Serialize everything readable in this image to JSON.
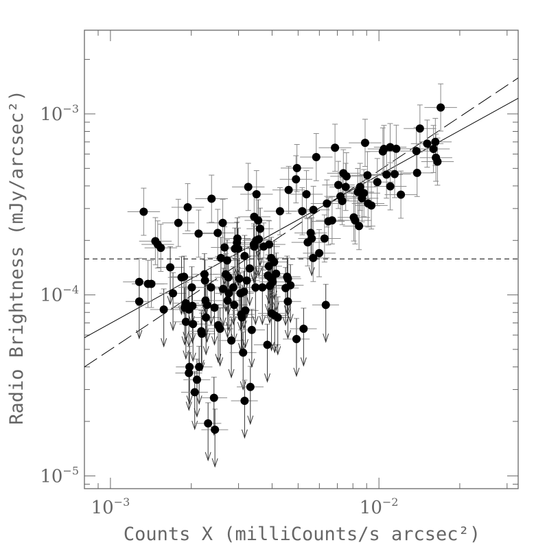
{
  "chart_data": {
    "type": "scatter",
    "title": "",
    "xlabel": "Counts X (milliCounts/s arcsec²)",
    "ylabel": "Radio Brightness (mJy/arcsec²)",
    "xscale": "log",
    "yscale": "log",
    "xlim": [
      0.0008,
      0.033
    ],
    "ylim": [
      8.5e-06,
      0.0029
    ],
    "xticks": [
      {
        "value": 0.001,
        "base": "10",
        "exp": "−3"
      },
      {
        "value": 0.01,
        "base": "10",
        "exp": "−2"
      }
    ],
    "yticks": [
      {
        "value": 1e-05,
        "base": "10",
        "exp": "−5"
      },
      {
        "value": 0.0001,
        "base": "10",
        "exp": "−4"
      },
      {
        "value": 0.001,
        "base": "10",
        "exp": "−3"
      }
    ],
    "grid": false,
    "colors": {
      "points": "#000000",
      "errorbars": "#888888",
      "axes": "#666666",
      "lines": "#000000"
    },
    "reference_lines": [
      {
        "style": "solid",
        "from": [
          0.0008,
          5.8e-05
        ],
        "to": [
          0.033,
          0.00122
        ]
      },
      {
        "style": "long-dash",
        "from": [
          0.0008,
          4e-05
        ],
        "to": [
          0.033,
          0.00158
        ]
      },
      {
        "style": "short-dash-horizontal",
        "y": 0.000158
      }
    ],
    "detections": [
      [
        0.00128,
        0.000118
      ],
      [
        0.00133,
        0.000288
      ],
      [
        0.00138,
        0.000115
      ],
      [
        0.00142,
        0.000115
      ],
      [
        0.00147,
        0.000198
      ],
      [
        0.0015,
        0.00019
      ],
      [
        0.00154,
        0.000182
      ],
      [
        0.00179,
        0.00025
      ],
      [
        0.00194,
        0.000305
      ],
      [
        0.00213,
        0.000218
      ],
      [
        0.00238,
        0.00034
      ],
      [
        0.00251,
        0.00022
      ],
      [
        0.00262,
        0.00025
      ],
      [
        0.00326,
        0.000395
      ],
      [
        0.00343,
        0.00027
      ],
      [
        0.0035,
        0.00036
      ],
      [
        0.00372,
        0.000185
      ],
      [
        0.0039,
        0.00019
      ],
      [
        0.00428,
        0.00029
      ],
      [
        0.00461,
        0.00038
      ],
      [
        0.00491,
        0.000435
      ],
      [
        0.00495,
        0.000502
      ],
      [
        0.00518,
        0.00029
      ],
      [
        0.00537,
        0.00036
      ],
      [
        0.0057,
        0.000295
      ],
      [
        0.00584,
        0.000577
      ],
      [
        0.00543,
        0.000195
      ],
      [
        0.00557,
        0.00022
      ],
      [
        0.00569,
        0.00016
      ],
      [
        0.00599,
        0.00017
      ],
      [
        0.00627,
        0.000205
      ],
      [
        0.0064,
        0.00032
      ],
      [
        0.00648,
        0.000255
      ],
      [
        0.00669,
        0.000258
      ],
      [
        0.00686,
        0.00065
      ],
      [
        0.00706,
        0.000405
      ],
      [
        0.00719,
        0.00035
      ],
      [
        0.0073,
        0.00033
      ],
      [
        0.00737,
        0.00047
      ],
      [
        0.00757,
        0.000452
      ],
      [
        0.00752,
        0.000395
      ],
      [
        0.00806,
        0.000268
      ],
      [
        0.00815,
        0.000258
      ],
      [
        0.00834,
        0.00037
      ],
      [
        0.00851,
        0.000395
      ],
      [
        0.00843,
        0.00024
      ],
      [
        0.00865,
        0.000342
      ],
      [
        0.00879,
        0.000365
      ],
      [
        0.00888,
        0.000692
      ],
      [
        0.00906,
        0.000458
      ],
      [
        0.00911,
        0.00032
      ],
      [
        0.00937,
        0.000312
      ],
      [
        0.00986,
        0.00042
      ],
      [
        0.01034,
        0.00062
      ],
      [
        0.01044,
        0.00064
      ],
      [
        0.01067,
        0.000462
      ],
      [
        0.01101,
        0.000655
      ],
      [
        0.01102,
        0.000398
      ],
      [
        0.01144,
        0.000465
      ],
      [
        0.0116,
        0.000642
      ],
      [
        0.01207,
        0.000358
      ],
      [
        0.01379,
        0.000623
      ],
      [
        0.01387,
        0.000472
      ],
      [
        0.01421,
        0.00083
      ],
      [
        0.01512,
        0.000685
      ],
      [
        0.01596,
        0.00064
      ],
      [
        0.01622,
        0.0007
      ],
      [
        0.0163,
        0.000573
      ],
      [
        0.01652,
        0.000545
      ],
      [
        0.01698,
        0.001085
      ]
    ],
    "upper_limits": [
      [
        0.00128,
        9.2e-05
      ],
      [
        0.00158,
        8.3e-05
      ],
      [
        0.00167,
        0.000142
      ],
      [
        0.00171,
        0.000102
      ],
      [
        0.00184,
        0.000125
      ],
      [
        0.00188,
        0.000126
      ],
      [
        0.00189,
        8.5e-05
      ],
      [
        0.00191,
        9e-05
      ],
      [
        0.00191,
        7.1e-05
      ],
      [
        0.00196,
        8.3e-05
      ],
      [
        0.00196,
        3.7e-05
      ],
      [
        0.00197,
        4e-05
      ],
      [
        0.00201,
        0.00011
      ],
      [
        0.00202,
        8.7e-05
      ],
      [
        0.00203,
        6.9e-05
      ],
      [
        0.00206,
        2.9e-05
      ],
      [
        0.0021,
        3.4e-05
      ],
      [
        0.00214,
        4e-05
      ],
      [
        0.00219,
        6.1e-05
      ],
      [
        0.00218,
        6.3e-05
      ],
      [
        0.00225,
        0.00012
      ],
      [
        0.00224,
        0.00013
      ],
      [
        0.00226,
        9.3e-05
      ],
      [
        0.00227,
        7.5e-05
      ],
      [
        0.00229,
        8.8e-05
      ],
      [
        0.00231,
        1.95e-05
      ],
      [
        0.00237,
        0.00011
      ],
      [
        0.00245,
        1.8e-05
      ],
      [
        0.00243,
        2.7e-05
      ],
      [
        0.00244,
        8.5e-05
      ],
      [
        0.00252,
        6.8e-05
      ],
      [
        0.00256,
        6.5e-05
      ],
      [
        0.00258,
        0.00016
      ],
      [
        0.00263,
        0.000108
      ],
      [
        0.00266,
        0.000183
      ],
      [
        0.00272,
        0.000155
      ],
      [
        0.00275,
        0.000125
      ],
      [
        0.00273,
        9.3e-05
      ],
      [
        0.00269,
        0.00013
      ],
      [
        0.00276,
        0.000102
      ],
      [
        0.00282,
        5.6e-05
      ],
      [
        0.00287,
        0.00011
      ],
      [
        0.00289,
        8.8e-05
      ],
      [
        0.00291,
        0.00018
      ],
      [
        0.00296,
        0.000194
      ],
      [
        0.00297,
        0.000205
      ],
      [
        0.00299,
        0.00018
      ],
      [
        0.00302,
        0.000123
      ],
      [
        0.00305,
        0.000102
      ],
      [
        0.00307,
        7.8e-05
      ],
      [
        0.00309,
        7.5e-05
      ],
      [
        0.00312,
        4.8e-05
      ],
      [
        0.00314,
        0.000104
      ],
      [
        0.00316,
        0.000164
      ],
      [
        0.00316,
        2.6e-05
      ],
      [
        0.00318,
        8.2e-05
      ],
      [
        0.00322,
        0.00012
      ],
      [
        0.0033,
        0.00014
      ],
      [
        0.00332,
        3.1e-05
      ],
      [
        0.00336,
        6.4e-05
      ],
      [
        0.00342,
        0.00019
      ],
      [
        0.00343,
        0.000185
      ],
      [
        0.00347,
        0.00011
      ],
      [
        0.00349,
        0.0002
      ],
      [
        0.00355,
        0.000258
      ],
      [
        0.00357,
        0.000203
      ],
      [
        0.00361,
        0.000232
      ],
      [
        0.00368,
        0.00011
      ],
      [
        0.00384,
        5.3e-05
      ],
      [
        0.00386,
        0.000128
      ],
      [
        0.00389,
        0.000144
      ],
      [
        0.00392,
        0.000112
      ],
      [
        0.00394,
        0.000125
      ],
      [
        0.00397,
        0.00016
      ],
      [
        0.004,
        0.000123
      ],
      [
        0.00398,
        7.9e-05
      ],
      [
        0.00402,
        0.000118
      ],
      [
        0.00407,
        0.000152
      ],
      [
        0.00409,
        7.7e-05
      ],
      [
        0.00414,
        0.000131
      ],
      [
        0.0042,
        7.5e-05
      ],
      [
        0.00449,
        0.000109
      ],
      [
        0.00455,
        0.000126
      ],
      [
        0.00458,
        0.000123
      ],
      [
        0.00458,
        9.2e-05
      ],
      [
        0.00468,
        0.000113
      ],
      [
        0.00493,
        5.7e-05
      ],
      [
        0.00524,
        6.5e-05
      ],
      [
        0.00562,
        0.000205
      ],
      [
        0.00634,
        8.8e-05
      ]
    ]
  }
}
